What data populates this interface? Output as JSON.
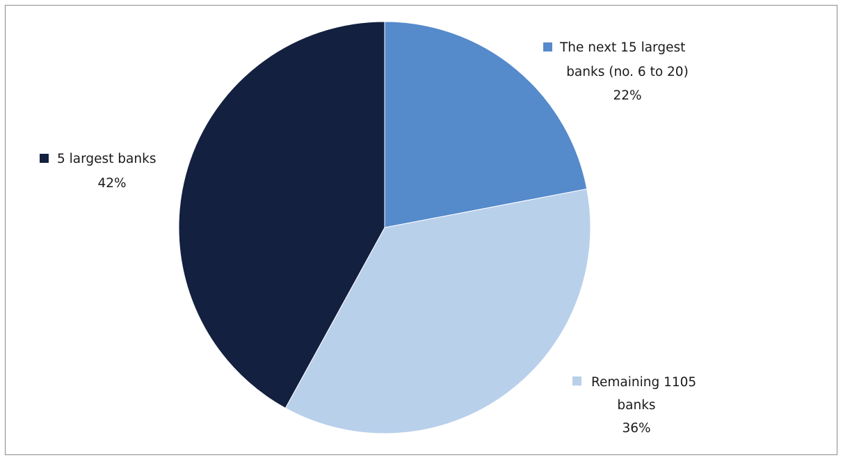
{
  "chart_data": {
    "type": "pie",
    "title": "",
    "slices": [
      {
        "name": "The next 15 largest",
        "name_line2": "banks (no. 6 to 20)",
        "value": 22,
        "value_label": "22%",
        "color": "#558acb"
      },
      {
        "name": "Remaining 1105",
        "name_line2": "banks",
        "value": 36,
        "value_label": "36%",
        "color": "#b9d0eb"
      },
      {
        "name": "5 largest banks",
        "name_line2": "",
        "value": 42,
        "value_label": "42%",
        "color": "#132040"
      }
    ],
    "start_angle_deg": 0,
    "direction": "clockwise",
    "legend": "none"
  }
}
